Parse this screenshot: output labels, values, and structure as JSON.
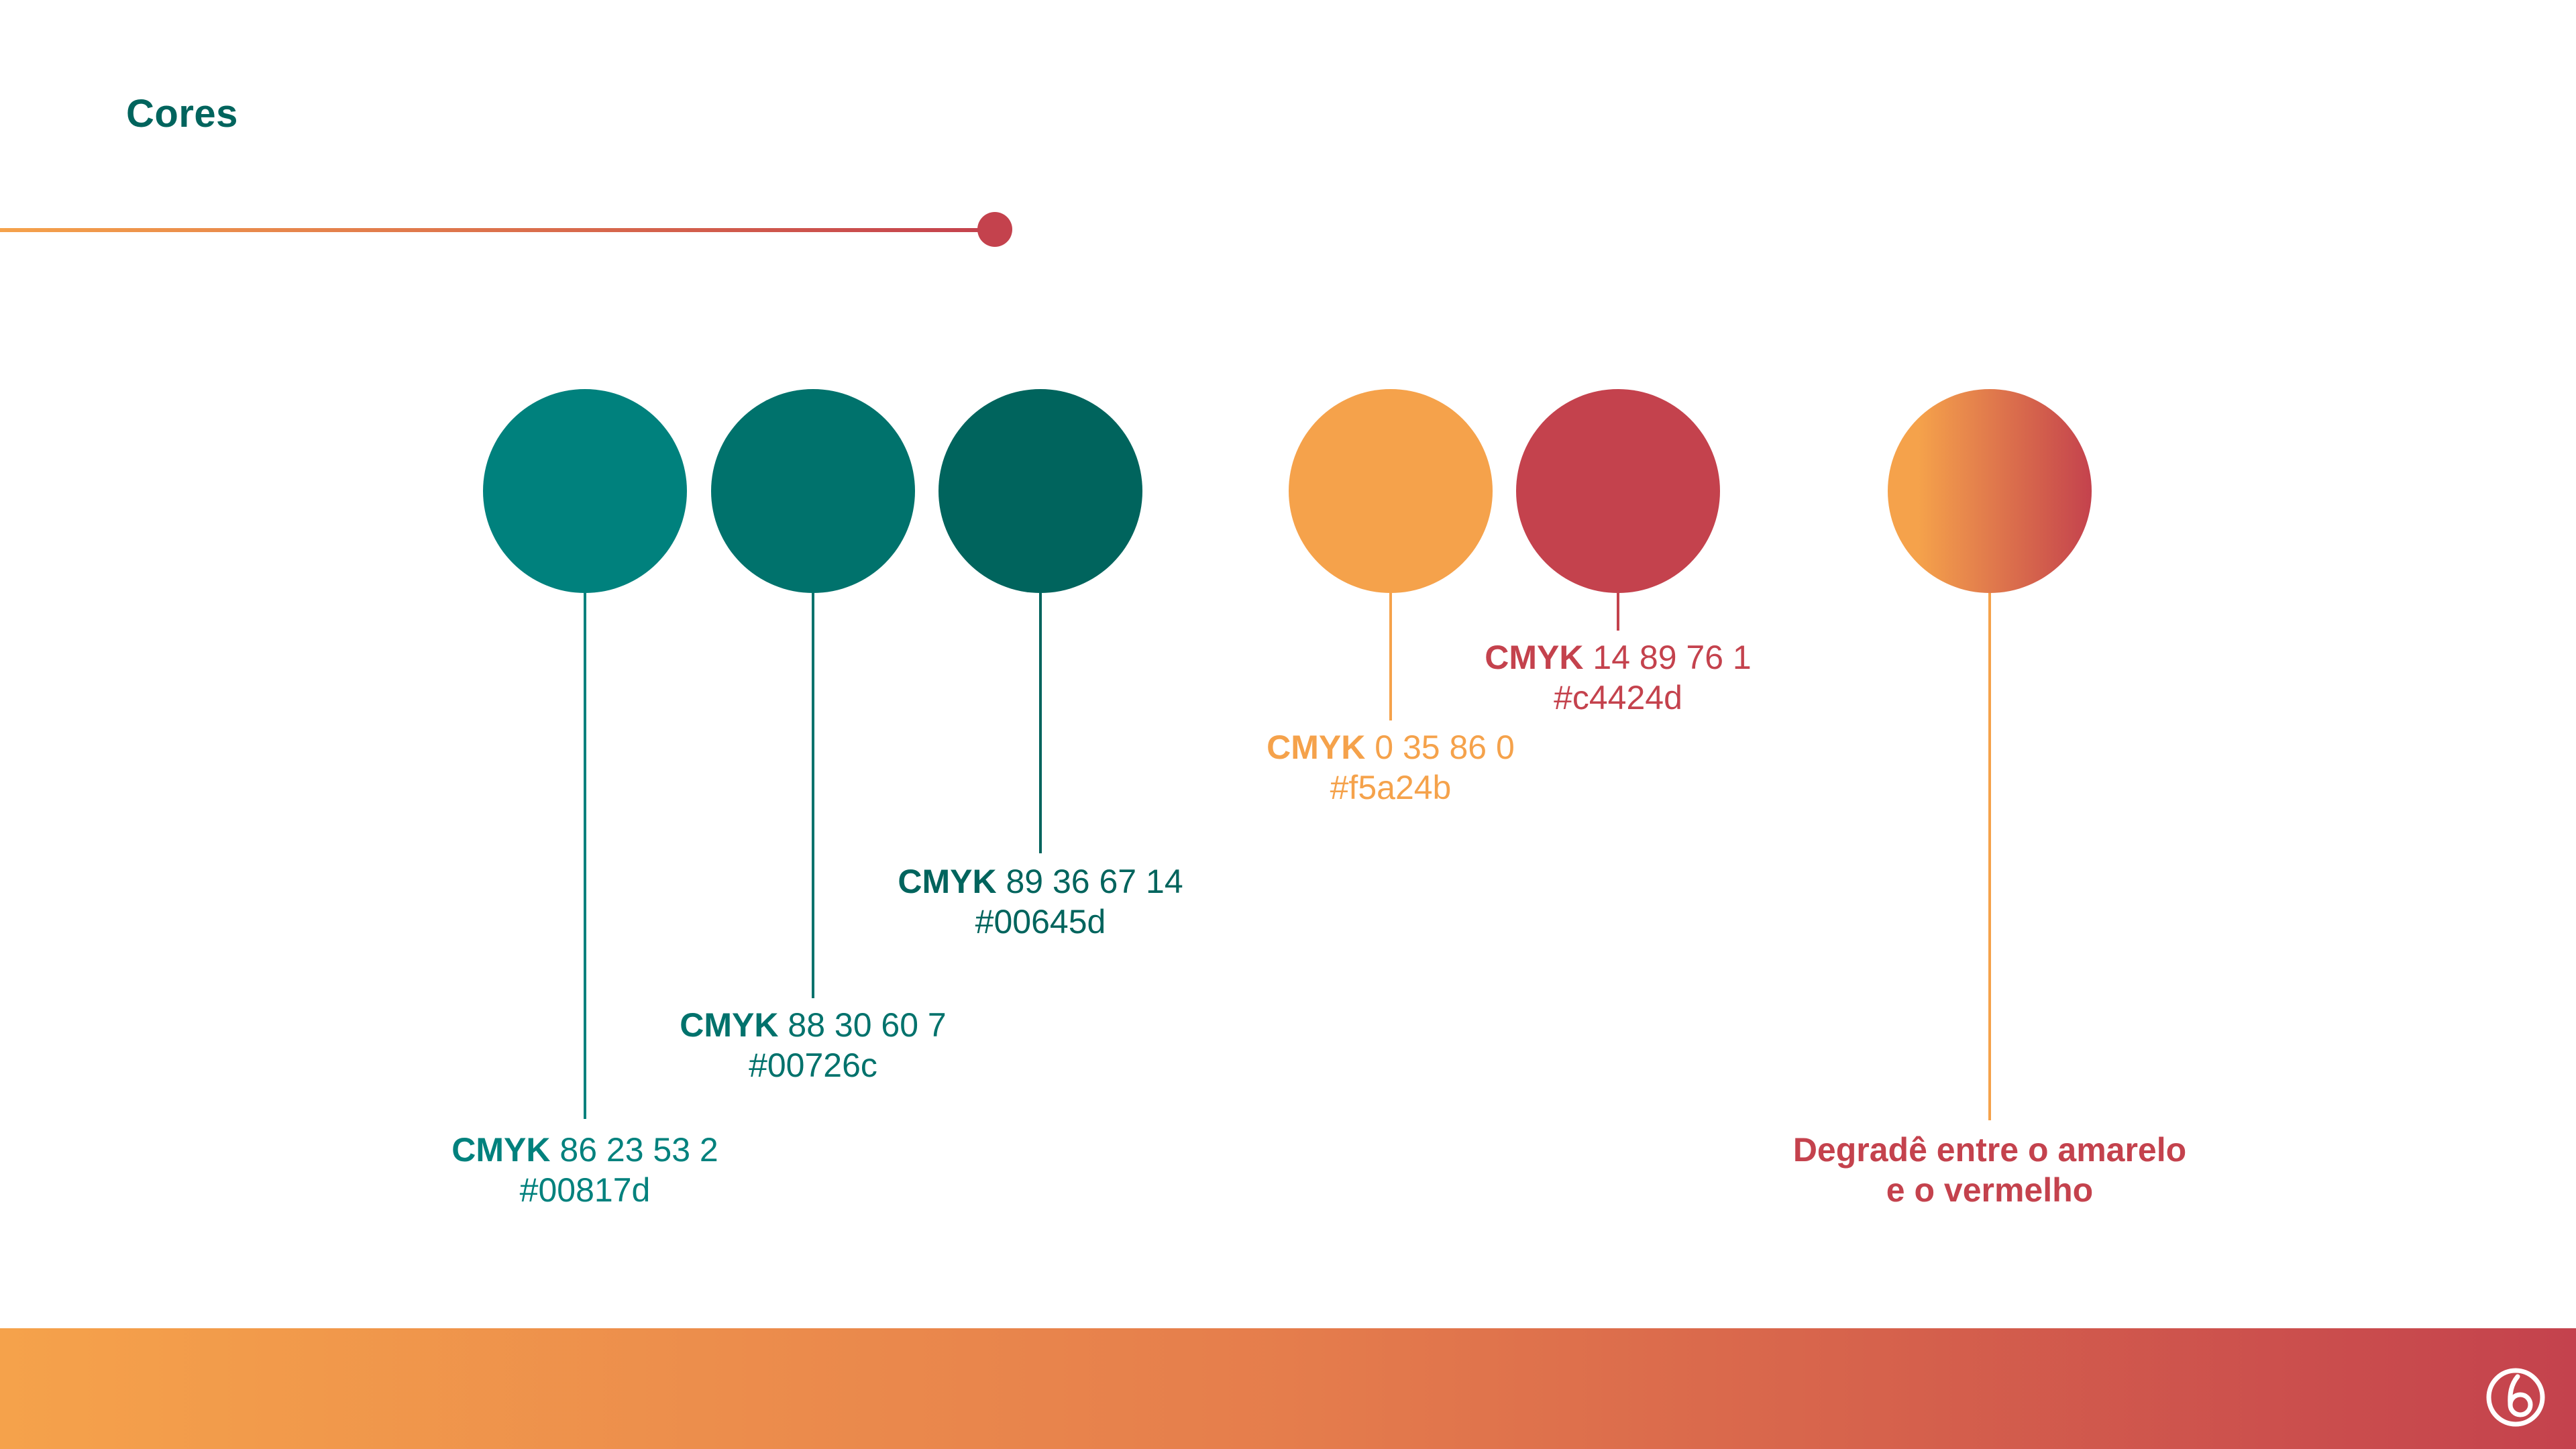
{
  "page": {
    "title": "Cores"
  },
  "palette": [
    {
      "cmyk_label": "CMYK",
      "cmyk_values": "86 23 53 2",
      "hex": "#00817d",
      "color": "#00817d"
    },
    {
      "cmyk_label": "CMYK",
      "cmyk_values": "88 30 60 7",
      "hex": "#00726c",
      "color": "#00726c"
    },
    {
      "cmyk_label": "CMYK",
      "cmyk_values": "89 36 67 14",
      "hex": "#00645d",
      "color": "#00645d"
    },
    {
      "cmyk_label": "CMYK",
      "cmyk_values": "0 35 86 0",
      "hex": "#f5a24b",
      "color": "#f5a24b"
    },
    {
      "cmyk_label": "CMYK",
      "cmyk_values": "14 89 76 1",
      "hex": "#c4424d",
      "color": "#c4424d"
    }
  ],
  "gradient": {
    "line1": "Degradê entre o amarelo",
    "line2": "e o vermelho",
    "from_color": "#f5a24b",
    "to_color": "#c4424d"
  },
  "colors": {
    "title": "#00645d",
    "accent_start": "#f5a24b",
    "accent_end": "#c4424d",
    "footer_mid": "#e57d4c"
  },
  "footer": {
    "logo_icon": "brand-logo-icon"
  }
}
